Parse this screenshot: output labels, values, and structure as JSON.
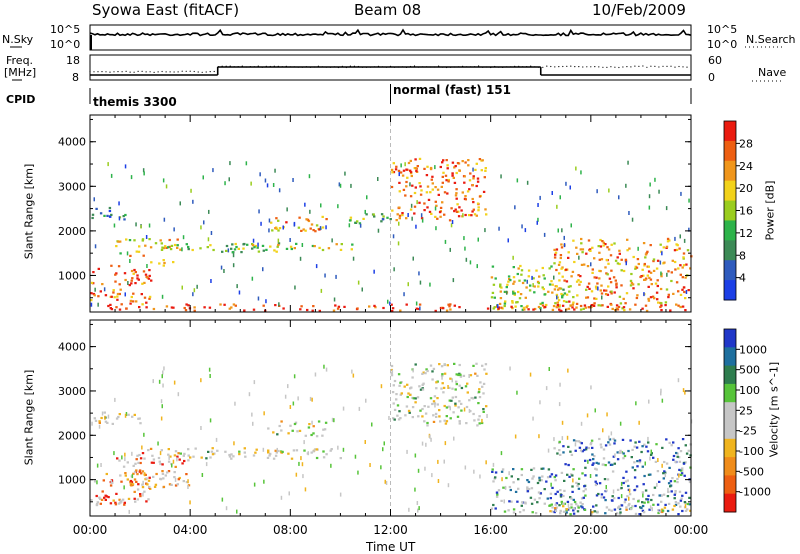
{
  "header": {
    "title": "Syowa East (fitACF)",
    "beam": "Beam 08",
    "date": "10/Feb/2009"
  },
  "top_panels": {
    "nsky_label": "N.Sky",
    "nsky_ticks": [
      "10^5",
      "10^0"
    ],
    "nsearch_label": "N.Search",
    "nsearch_ticks": [
      "10^5",
      "10^0"
    ],
    "freq_label_line1": "Freq.",
    "freq_label_line2": "[MHz]",
    "freq_ticks": [
      "18",
      "8"
    ],
    "nave_label": "Nave",
    "nave_ticks": [
      "60",
      "0"
    ],
    "cpid_label": "CPID",
    "cpid_modes": [
      {
        "name": "themis 3300",
        "start": 0,
        "end": 12
      },
      {
        "name": "normal (fast) 151",
        "start": 12,
        "end": 24
      }
    ]
  },
  "colors": {
    "power_scale": [
      "#1c3fe6",
      "#2f5bbd",
      "#3c8a56",
      "#2db34a",
      "#9acd1e",
      "#f2d21a",
      "#f0961b",
      "#ee5f12",
      "#ea1b10"
    ],
    "velocity_scale": [
      "#2037c8",
      "#1e6f9e",
      "#2e7d4e",
      "#57c43a",
      "#c6c6c6",
      "#c6c6c6",
      "#f0b41e",
      "#f08c1a",
      "#ee5f12",
      "#ea1b10"
    ],
    "velocity_ground": "#c6c6c6"
  },
  "chart_data": [
    {
      "type": "heatmap",
      "title": "Power",
      "ylabel": "Slant Range [km]",
      "xlabel": "",
      "xlim": [
        0,
        24
      ],
      "ylim": [
        180,
        4600
      ],
      "yticks": [
        1000,
        2000,
        3000,
        4000
      ],
      "xtick_labels": [
        "00:00",
        "04:00",
        "08:00",
        "12:00",
        "16:00",
        "20:00",
        "00:00"
      ],
      "colorbar_label": "Power [dB]",
      "colorbar_ticks": [
        "4",
        "8",
        "12",
        "16",
        "20",
        "24",
        "28"
      ],
      "regions": [
        {
          "t0": 0.0,
          "t1": 2.4,
          "r0": 320,
          "r1": 1200,
          "level": 0.85
        },
        {
          "t0": 1.0,
          "t1": 3.6,
          "r0": 1200,
          "r1": 1800,
          "level": 0.62
        },
        {
          "t0": 0.0,
          "t1": 1.5,
          "r0": 2200,
          "r1": 2500,
          "level": 0.25
        },
        {
          "t0": 3.0,
          "t1": 7.5,
          "r0": 1500,
          "r1": 1700,
          "level": 0.45
        },
        {
          "t0": 6.0,
          "t1": 10.5,
          "r0": 1550,
          "r1": 1700,
          "level": 0.55
        },
        {
          "t0": 7.0,
          "t1": 9.5,
          "r0": 1950,
          "r1": 2300,
          "level": 0.7
        },
        {
          "t0": 10.0,
          "t1": 12.0,
          "r0": 2150,
          "r1": 2400,
          "level": 0.35
        },
        {
          "t0": 12.0,
          "t1": 15.8,
          "r0": 2200,
          "r1": 3600,
          "level": 0.78
        },
        {
          "t0": 16.0,
          "t1": 19.0,
          "r0": 200,
          "r1": 1200,
          "level": 0.55
        },
        {
          "t0": 18.5,
          "t1": 24.0,
          "r0": 200,
          "r1": 1800,
          "level": 0.72
        },
        {
          "t0": 0.0,
          "t1": 24.0,
          "r0": 180,
          "r1": 330,
          "level": 0.9
        }
      ]
    },
    {
      "type": "heatmap",
      "title": "Velocity",
      "ylabel": "Slant Range [km]",
      "xlabel": "Time UT",
      "xlim": [
        0,
        24
      ],
      "ylim": [
        180,
        4600
      ],
      "yticks": [
        1000,
        2000,
        3000,
        4000
      ],
      "xtick_labels": [
        "00:00",
        "04:00",
        "08:00",
        "12:00",
        "16:00",
        "20:00",
        "00:00"
      ],
      "colorbar_label": "Velocity [m s^-1]",
      "colorbar_ticks": [
        "1000",
        "500",
        "100",
        "25",
        "-25",
        "-100",
        "-500",
        "-1000"
      ],
      "regions": [
        {
          "t0": 0.0,
          "t1": 2.4,
          "r0": 400,
          "r1": 1200,
          "level": 0.82
        },
        {
          "t0": 1.0,
          "t1": 4.0,
          "r0": 800,
          "r1": 1700,
          "level": 0.78
        },
        {
          "t0": 0.0,
          "t1": 2.0,
          "r0": 2200,
          "r1": 2500,
          "level": 0.5
        },
        {
          "t0": 3.5,
          "t1": 10.5,
          "r0": 1450,
          "r1": 1700,
          "level": 0.5
        },
        {
          "t0": 7.0,
          "t1": 9.5,
          "r0": 1950,
          "r1": 2300,
          "level": 0.5
        },
        {
          "t0": 12.0,
          "t1": 15.8,
          "r0": 2200,
          "r1": 3600,
          "level": 0.5
        },
        {
          "t0": 16.0,
          "t1": 19.5,
          "r0": 200,
          "r1": 1300,
          "level": 0.22
        },
        {
          "t0": 18.5,
          "t1": 24.0,
          "r0": 200,
          "r1": 1900,
          "level": 0.12
        },
        {
          "t0": 18.0,
          "t1": 24.0,
          "r0": 200,
          "r1": 450,
          "level": 0.5
        }
      ]
    }
  ]
}
